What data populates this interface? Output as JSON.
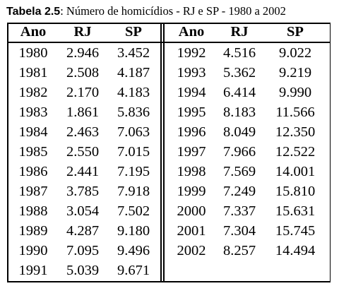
{
  "caption": {
    "label": "Tabela 2.5",
    "text": ": Número de homicídios - RJ e SP - 1980 a 2002"
  },
  "table": {
    "headers": [
      "Ano",
      "RJ",
      "SP"
    ],
    "left_rows": [
      [
        "1980",
        "2.946",
        "3.452"
      ],
      [
        "1981",
        "2.508",
        "4.187"
      ],
      [
        "1982",
        "2.170",
        "4.183"
      ],
      [
        "1983",
        "1.861",
        "5.836"
      ],
      [
        "1984",
        "2.463",
        "7.063"
      ],
      [
        "1985",
        "2.550",
        "7.015"
      ],
      [
        "1986",
        "2.441",
        "7.195"
      ],
      [
        "1987",
        "3.785",
        "7.918"
      ],
      [
        "1988",
        "3.054",
        "7.502"
      ],
      [
        "1989",
        "4.287",
        "9.180"
      ],
      [
        "1990",
        "7.095",
        "9.496"
      ],
      [
        "1991",
        "5.039",
        "9.671"
      ]
    ],
    "right_rows": [
      [
        "1992",
        "4.516",
        "9.022"
      ],
      [
        "1993",
        "5.362",
        "9.219"
      ],
      [
        "1994",
        "6.414",
        "9.990"
      ],
      [
        "1995",
        "8.183",
        "11.566"
      ],
      [
        "1996",
        "8.049",
        "12.350"
      ],
      [
        "1997",
        "7.966",
        "12.522"
      ],
      [
        "1998",
        "7.569",
        "14.001"
      ],
      [
        "1999",
        "7.249",
        "15.810"
      ],
      [
        "2000",
        "7.337",
        "15.631"
      ],
      [
        "2001",
        "7.304",
        "15.745"
      ],
      [
        "2002",
        "8.257",
        "14.494"
      ]
    ]
  }
}
